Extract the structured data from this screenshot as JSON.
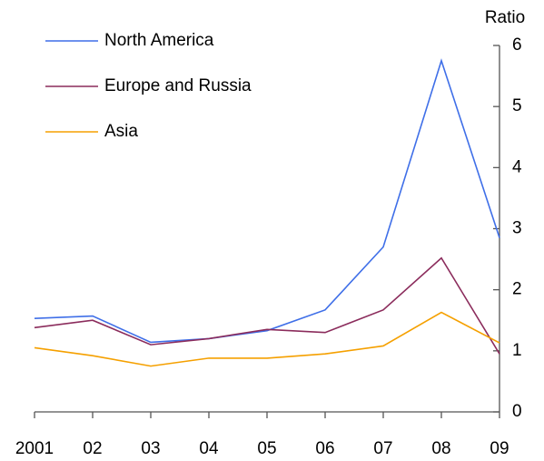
{
  "chart_data": {
    "type": "line",
    "y_axis_label": "Ratio",
    "categories": [
      "2001",
      "02",
      "03",
      "04",
      "05",
      "06",
      "07",
      "08",
      "09"
    ],
    "series": [
      {
        "name": "North America",
        "color": "#3f6fe8",
        "values": [
          1.53,
          1.57,
          1.14,
          1.2,
          1.33,
          1.67,
          2.7,
          5.75,
          2.85
        ]
      },
      {
        "name": "Europe and Russia",
        "color": "#8b2c5c",
        "values": [
          1.38,
          1.5,
          1.1,
          1.2,
          1.35,
          1.3,
          1.67,
          2.52,
          0.95
        ]
      },
      {
        "name": "Asia",
        "color": "#f5a000",
        "values": [
          1.05,
          0.92,
          0.75,
          0.88,
          0.88,
          0.95,
          1.08,
          1.63,
          1.13
        ]
      }
    ],
    "ylim": [
      0,
      6
    ],
    "yticks": [
      0,
      1,
      2,
      3,
      4,
      5,
      6
    ],
    "y_axis_side": "right",
    "legend": "top-left",
    "grid": false
  }
}
